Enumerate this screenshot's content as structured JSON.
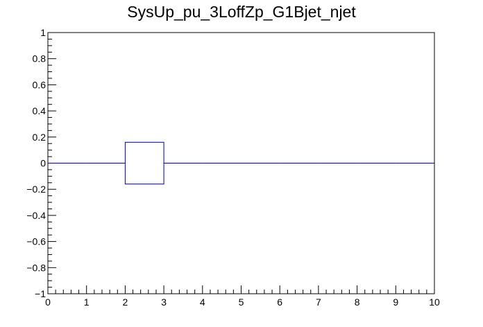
{
  "chart_data": {
    "type": "histogram",
    "title": "SysUp_pu_3LoffZp_G1Bjet_njet",
    "xlabel": "",
    "ylabel": "",
    "xlim": [
      0,
      10
    ],
    "ylim": [
      -1,
      1
    ],
    "x_ticks": [
      "0",
      "1",
      "2",
      "3",
      "4",
      "5",
      "6",
      "7",
      "8",
      "9",
      "10"
    ],
    "y_ticks": [
      "−1",
      "−0.8",
      "−0.6",
      "−0.4",
      "−0.2",
      "0",
      "0.2",
      "0.4",
      "0.6",
      "0.8",
      "1"
    ],
    "bins": [
      {
        "low": 0,
        "high": 1,
        "value": 0,
        "error": 0
      },
      {
        "low": 1,
        "high": 2,
        "value": 0,
        "error": 0
      },
      {
        "low": 2,
        "high": 3,
        "value": 0,
        "error": 0.16
      },
      {
        "low": 3,
        "high": 4,
        "value": 0,
        "error": 0
      },
      {
        "low": 4,
        "high": 5,
        "value": 0,
        "error": 0
      },
      {
        "low": 5,
        "high": 6,
        "value": 0,
        "error": 0
      },
      {
        "low": 6,
        "high": 7,
        "value": 0,
        "error": 0
      },
      {
        "low": 7,
        "high": 8,
        "value": 0,
        "error": 0
      },
      {
        "low": 8,
        "high": 9,
        "value": 0,
        "error": 0
      },
      {
        "low": 9,
        "high": 10,
        "value": 0,
        "error": 0
      }
    ],
    "line_color": "#000099",
    "grid": false,
    "legend": "none"
  }
}
